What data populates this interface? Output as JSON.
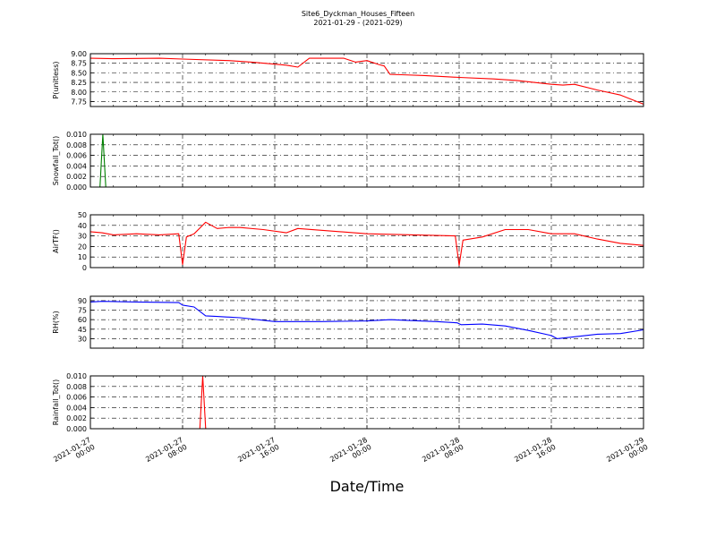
{
  "figure": {
    "title_line1": "Site6_Dyckman_Houses_Fifteen",
    "title_line2": "2021-01-29 - (2021-029)",
    "xlabel": "Date/Time"
  },
  "x_ticks": [
    {
      "line1": "2021-01-27",
      "line2": "00:00"
    },
    {
      "line1": "2021-01-27",
      "line2": "08:00"
    },
    {
      "line1": "2021-01-27",
      "line2": "16:00"
    },
    {
      "line1": "2021-01-28",
      "line2": "00:00"
    },
    {
      "line1": "2021-01-28",
      "line2": "08:00"
    },
    {
      "line1": "2021-01-28",
      "line2": "16:00"
    },
    {
      "line1": "2021-01-29",
      "line2": "00:00"
    }
  ],
  "chart_data": [
    {
      "type": "line",
      "ylabel": "P(unitless)",
      "ylim": [
        7.62,
        9.0
      ],
      "yticks": [
        7.75,
        8.0,
        8.25,
        8.5,
        8.75,
        9.0
      ],
      "ytick_labels": [
        "7.75",
        "8.00",
        "8.25",
        "8.50",
        "8.75",
        "9.00"
      ],
      "grid": true,
      "series": [
        {
          "color": "#ff0000",
          "x": [
            "2021-01-27 00:00",
            "2021-01-27 02:00",
            "2021-01-27 06:00",
            "2021-01-27 08:00",
            "2021-01-27 12:00",
            "2021-01-27 14:00",
            "2021-01-27 17:00",
            "2021-01-27 18:00",
            "2021-01-27 19:00",
            "2021-01-27 22:00",
            "2021-01-27 23:00",
            "2021-01-28 00:00",
            "2021-01-28 01:00",
            "2021-01-28 01:30",
            "2021-01-28 02:00",
            "2021-01-28 03:00",
            "2021-01-28 05:00",
            "2021-01-28 08:00",
            "2021-01-28 11:00",
            "2021-01-28 13:00",
            "2021-01-28 16:00",
            "2021-01-28 17:00",
            "2021-01-28 18:00",
            "2021-01-28 20:00",
            "2021-01-28 22:00",
            "2021-01-29 00:00"
          ],
          "y": [
            8.88,
            8.87,
            8.88,
            8.86,
            8.82,
            8.78,
            8.7,
            8.65,
            8.88,
            8.88,
            8.78,
            8.82,
            8.72,
            8.68,
            8.46,
            8.45,
            8.43,
            8.38,
            8.34,
            8.3,
            8.2,
            8.18,
            8.2,
            8.05,
            7.92,
            7.68
          ]
        }
      ]
    },
    {
      "type": "line",
      "ylabel": "Snowfall_Tot()",
      "ylim": [
        0,
        0.01
      ],
      "yticks": [
        0,
        0.002,
        0.004,
        0.006,
        0.008,
        0.01
      ],
      "ytick_labels": [
        "0.000",
        "0.002",
        "0.004",
        "0.006",
        "0.008",
        "0.010"
      ],
      "grid": true,
      "series": [
        {
          "color": "#008000",
          "x": [
            "2021-01-27 00:00",
            "2021-01-27 00:50",
            "2021-01-27 01:05",
            "2021-01-27 01:20",
            "2021-01-29 00:00"
          ],
          "y": [
            0,
            0,
            0.01,
            0,
            0
          ]
        }
      ]
    },
    {
      "type": "line",
      "ylabel": "AirTF()",
      "ylim": [
        0,
        50
      ],
      "yticks": [
        0,
        10,
        20,
        30,
        40,
        50
      ],
      "ytick_labels": [
        "0",
        "10",
        "20",
        "30",
        "40",
        "50"
      ],
      "grid": true,
      "series": [
        {
          "color": "#ff0000",
          "x": [
            "2021-01-27 00:00",
            "2021-01-27 01:00",
            "2021-01-27 02:00",
            "2021-01-27 04:00",
            "2021-01-27 06:00",
            "2021-01-27 07:40",
            "2021-01-27 08:00",
            "2021-01-27 08:20",
            "2021-01-27 09:00",
            "2021-01-27 10:00",
            "2021-01-27 11:00",
            "2021-01-27 12:00",
            "2021-01-27 13:00",
            "2021-01-27 15:00",
            "2021-01-27 17:00",
            "2021-01-27 18:00",
            "2021-01-28 00:00",
            "2021-01-28 04:00",
            "2021-01-28 07:40",
            "2021-01-28 08:00",
            "2021-01-28 08:20",
            "2021-01-28 10:00",
            "2021-01-28 12:00",
            "2021-01-28 14:00",
            "2021-01-28 16:00",
            "2021-01-28 18:00",
            "2021-01-28 20:00",
            "2021-01-28 22:00",
            "2021-01-29 00:00"
          ],
          "y": [
            34,
            33,
            31,
            32,
            31,
            32,
            3,
            29,
            32,
            43,
            37,
            38,
            38,
            36,
            33,
            37,
            32,
            31,
            30,
            2,
            26,
            29,
            36,
            36,
            32,
            32,
            27,
            23,
            21
          ]
        }
      ]
    },
    {
      "type": "line",
      "ylabel": "RH(%)",
      "ylim": [
        15,
        97
      ],
      "yticks": [
        30,
        45,
        60,
        75,
        90
      ],
      "ytick_labels": [
        "30",
        "45",
        "60",
        "75",
        "90"
      ],
      "grid": true,
      "series": [
        {
          "color": "#0000ff",
          "x": [
            "2021-01-27 00:00",
            "2021-01-27 01:00",
            "2021-01-27 04:00",
            "2021-01-27 07:40",
            "2021-01-27 08:00",
            "2021-01-27 09:00",
            "2021-01-27 10:00",
            "2021-01-27 11:00",
            "2021-01-27 13:00",
            "2021-01-27 16:00",
            "2021-01-27 20:00",
            "2021-01-28 00:00",
            "2021-01-28 02:00",
            "2021-01-28 06:00",
            "2021-01-28 07:50",
            "2021-01-28 08:10",
            "2021-01-28 10:00",
            "2021-01-28 12:00",
            "2021-01-28 14:00",
            "2021-01-28 16:00",
            "2021-01-28 16:30",
            "2021-01-28 18:00",
            "2021-01-28 20:00",
            "2021-01-28 22:00",
            "2021-01-29 00:00"
          ],
          "y": [
            88,
            89,
            88,
            87,
            83,
            80,
            66,
            65,
            63,
            57,
            57,
            58,
            60,
            57,
            55,
            52,
            53,
            50,
            43,
            35,
            30,
            33,
            37,
            38,
            44
          ]
        }
      ]
    },
    {
      "type": "line",
      "ylabel": "Rainfall_Tot()",
      "ylim": [
        0,
        0.01
      ],
      "yticks": [
        0,
        0.002,
        0.004,
        0.006,
        0.008,
        0.01
      ],
      "ytick_labels": [
        "0.000",
        "0.002",
        "0.004",
        "0.006",
        "0.008",
        "0.010"
      ],
      "grid": true,
      "series": [
        {
          "color": "#ff0000",
          "x": [
            "2021-01-27 00:00",
            "2021-01-27 09:30",
            "2021-01-27 09:45",
            "2021-01-27 10:00",
            "2021-01-29 00:00"
          ],
          "y": [
            0,
            0,
            0.01,
            0,
            0
          ]
        }
      ]
    }
  ]
}
